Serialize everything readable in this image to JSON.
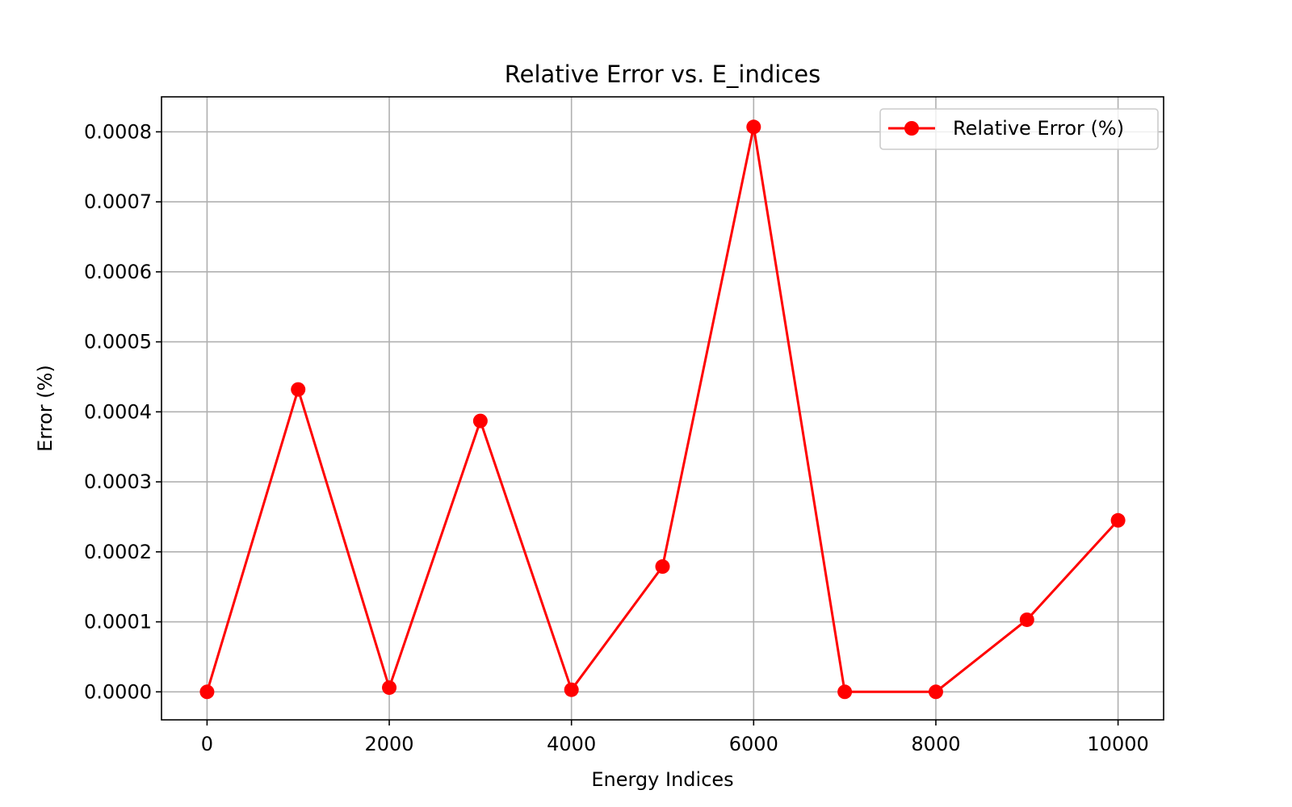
{
  "chart_data": {
    "type": "line",
    "title": "Relative Error vs. E_indices",
    "xlabel": "Energy Indices",
    "ylabel": "Error (%)",
    "x_ticks": [
      0,
      2000,
      4000,
      6000,
      8000,
      10000
    ],
    "y_ticks": [
      0.0,
      0.0001,
      0.0002,
      0.0003,
      0.0004,
      0.0005,
      0.0006,
      0.0007,
      0.0008
    ],
    "x_tick_labels": [
      "0",
      "2000",
      "4000",
      "6000",
      "8000",
      "10000"
    ],
    "y_tick_labels": [
      "0.0000",
      "0.0001",
      "0.0002",
      "0.0003",
      "0.0004",
      "0.0005",
      "0.0006",
      "0.0007",
      "0.0008"
    ],
    "xlim": [
      -500,
      10500
    ],
    "ylim": [
      -4e-05,
      0.00085
    ],
    "grid": true,
    "legend_position": "top-right",
    "series": [
      {
        "name": "Relative Error (%)",
        "color": "#ff0000",
        "marker": "circle",
        "x": [
          0,
          1000,
          2000,
          3000,
          4000,
          5000,
          6000,
          7000,
          8000,
          9000,
          10000
        ],
        "y": [
          0.0,
          0.000432,
          6e-06,
          0.000387,
          3e-06,
          0.000179,
          0.000807,
          0.0,
          0.0,
          0.000103,
          0.000245
        ]
      }
    ]
  }
}
